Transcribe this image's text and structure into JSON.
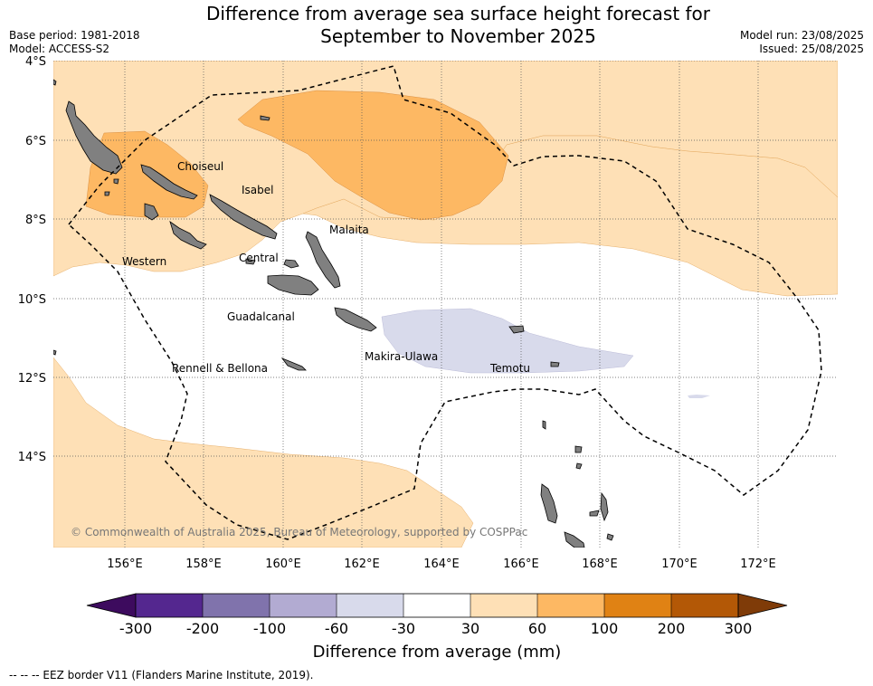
{
  "header": {
    "title_line1": "Difference from average sea surface height forecast for",
    "title_line2": "September to November 2025",
    "base_period": "Base period: 1981-2018",
    "model": "Model: ACCESS-S2",
    "model_run": "Model run: 23/08/2025",
    "issued": "Issued: 25/08/2025"
  },
  "map": {
    "lat_labels": [
      "4°S",
      "6°S",
      "8°S",
      "10°S",
      "12°S",
      "14°S"
    ],
    "lon_labels": [
      "156°E",
      "158°E",
      "160°E",
      "162°E",
      "164°E",
      "166°E",
      "168°E",
      "170°E",
      "172°E"
    ],
    "land_color": "#808080",
    "ocean_color": "#ffffff",
    "place_labels": {
      "choiseul": "Choiseul",
      "isabel": "Isabel",
      "malaita": "Malaita",
      "western": "Western",
      "central": "Central",
      "guadalcanal": "Guadalcanal",
      "makira": "Makira-Ulawa",
      "rennell": "Rennell & Bellona",
      "temotu": "Temotu"
    },
    "copyright": "© Commonwealth of Australia 2025, Bureau of Meteorology, supported by COSPPac"
  },
  "colorbar": {
    "title": "Difference from average (mm)",
    "ticks": [
      "-300",
      "-200",
      "-100",
      "-60",
      "-30",
      "30",
      "60",
      "100",
      "200",
      "300"
    ],
    "colors": {
      "below_min": "#3d0b5e",
      "c1": "#54278f",
      "c2": "#8073ac",
      "c3": "#b2abd2",
      "c4": "#d8daeb",
      "c5": "#ffffff",
      "c6": "#fee0b6",
      "c7": "#fdb863",
      "c8": "#e08214",
      "c9": "#b35806",
      "above_max": "#7f3b08"
    }
  },
  "footnote": "-- -- -- EEZ border V11 (Flanders Marine Institute, 2019)."
}
